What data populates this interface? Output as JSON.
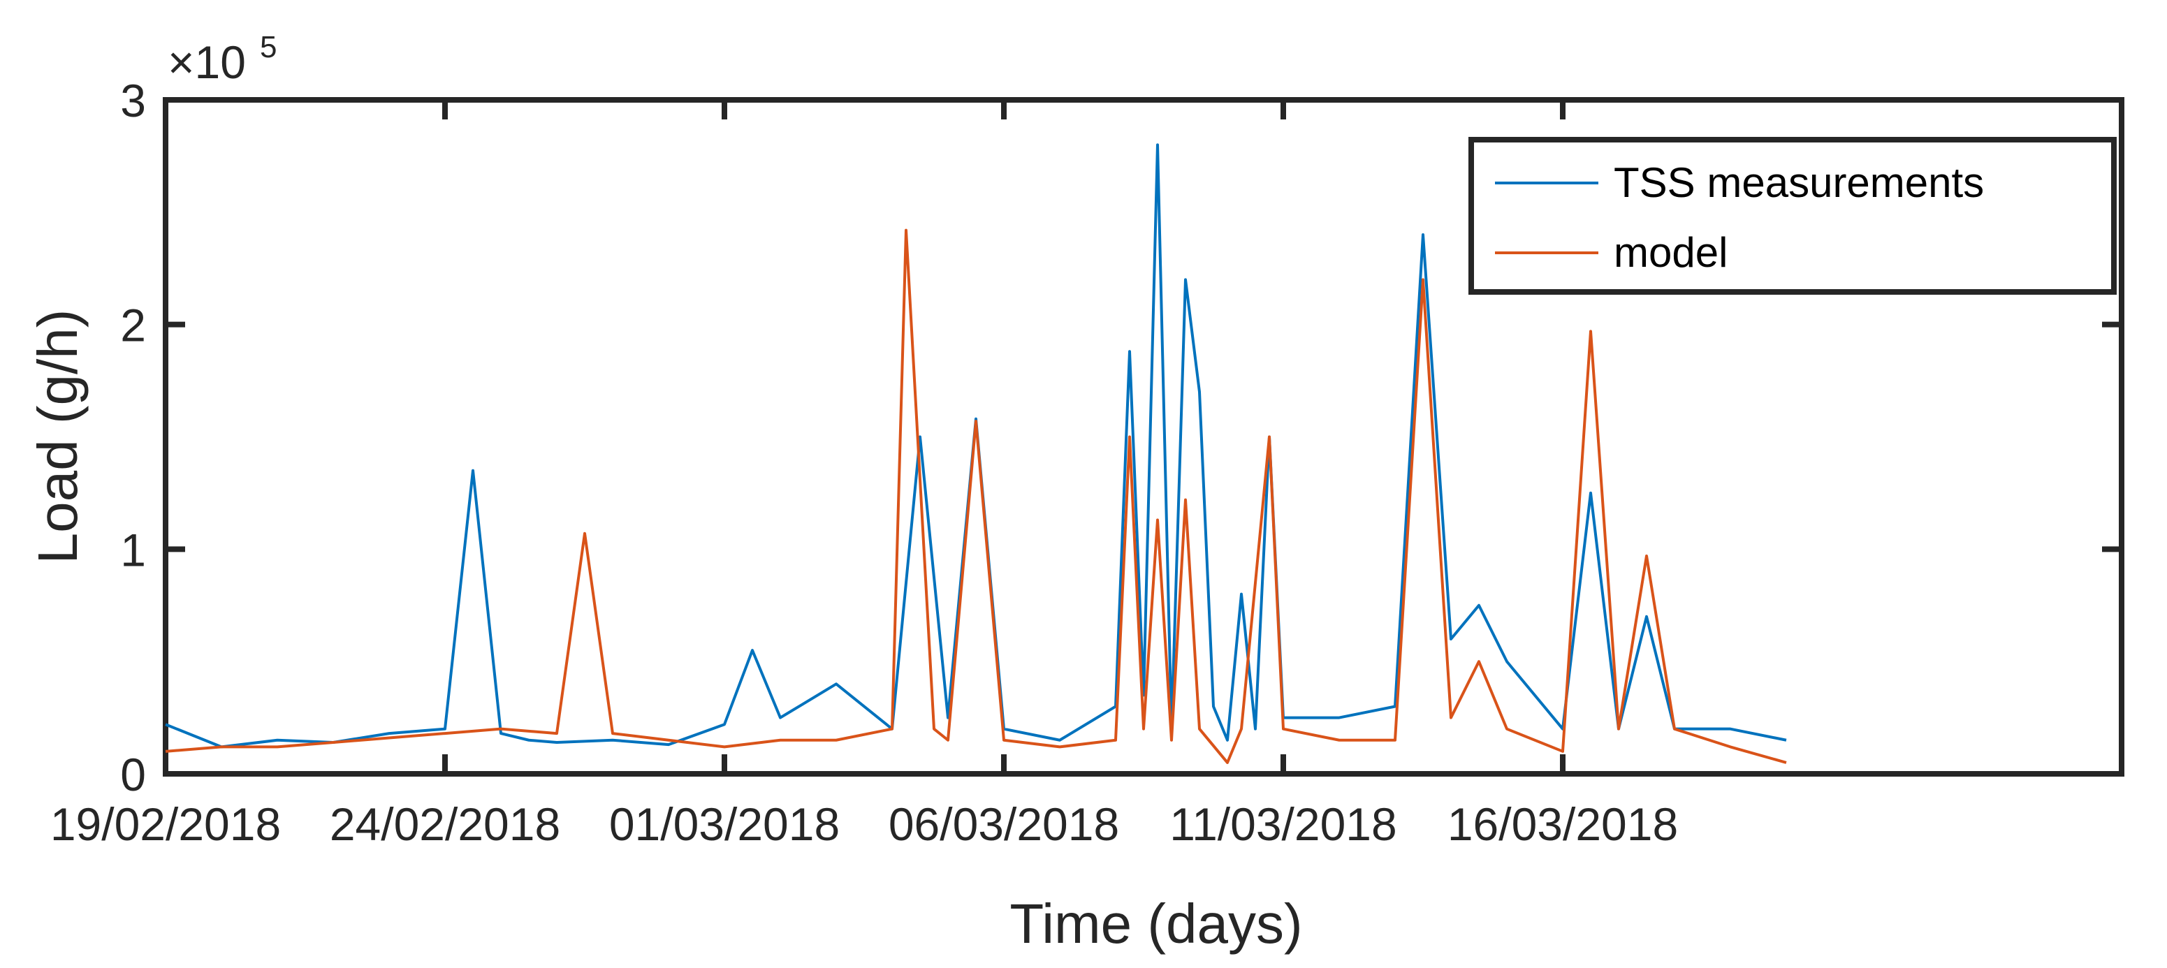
{
  "chart_data": {
    "type": "line",
    "title": "",
    "xlabel": "Time (days)",
    "ylabel": "Load (g/h)",
    "y_exponent_label": "×10",
    "y_exponent_power": "5",
    "y_multiplier": 100000,
    "xlim": [
      "2018-02-19",
      "2018-03-26"
    ],
    "ylim": [
      0,
      3
    ],
    "x_ticks": [
      {
        "date": "2018-02-19",
        "label": "19/02/2018"
      },
      {
        "date": "2018-02-24",
        "label": "24/02/2018"
      },
      {
        "date": "2018-03-01",
        "label": "01/03/2018"
      },
      {
        "date": "2018-03-06",
        "label": "06/03/2018"
      },
      {
        "date": "2018-03-11",
        "label": "11/03/2018"
      },
      {
        "date": "2018-03-16",
        "label": "16/03/2018"
      }
    ],
    "y_ticks": [
      {
        "value": 0,
        "label": "0"
      },
      {
        "value": 1,
        "label": "1"
      },
      {
        "value": 2,
        "label": "2"
      },
      {
        "value": 3,
        "label": "3"
      }
    ],
    "grid": false,
    "legend_position": "top-right",
    "series": [
      {
        "name": "TSS measurements",
        "color": "#0072BD",
        "x": [
          "2018-02-19",
          "2018-02-20",
          "2018-02-21",
          "2018-02-22",
          "2018-02-23",
          "2018-02-24",
          "2018-02-24 12:00",
          "2018-02-25",
          "2018-02-25 12:00",
          "2018-02-26",
          "2018-02-27",
          "2018-02-28",
          "2018-03-01",
          "2018-03-01 12:00",
          "2018-03-02",
          "2018-03-03",
          "2018-03-04",
          "2018-03-04 12:00",
          "2018-03-05",
          "2018-03-05 12:00",
          "2018-03-06",
          "2018-03-07",
          "2018-03-08",
          "2018-03-08 06:00",
          "2018-03-08 12:00",
          "2018-03-08 18:00",
          "2018-03-09",
          "2018-03-09 06:00",
          "2018-03-09 12:00",
          "2018-03-09 18:00",
          "2018-03-10",
          "2018-03-10 06:00",
          "2018-03-10 12:00",
          "2018-03-10 18:00",
          "2018-03-11",
          "2018-03-12",
          "2018-03-13",
          "2018-03-13 12:00",
          "2018-03-14",
          "2018-03-14 12:00",
          "2018-03-15",
          "2018-03-16",
          "2018-03-16 12:00",
          "2018-03-17",
          "2018-03-17 12:00",
          "2018-03-18",
          "2018-03-19",
          "2018-03-20"
        ],
        "values": [
          0.22,
          0.12,
          0.15,
          0.14,
          0.18,
          0.2,
          1.35,
          0.18,
          0.15,
          0.14,
          0.15,
          0.13,
          0.22,
          0.55,
          0.25,
          0.4,
          0.2,
          1.5,
          0.25,
          1.58,
          0.2,
          0.15,
          0.3,
          1.88,
          0.35,
          2.8,
          0.2,
          2.2,
          1.7,
          0.3,
          0.15,
          0.8,
          0.2,
          1.5,
          0.25,
          0.25,
          0.3,
          2.4,
          0.6,
          0.75,
          0.5,
          0.2,
          1.25,
          0.2,
          0.7,
          0.2,
          0.2,
          0.15
        ]
      },
      {
        "name": "model",
        "color": "#D95319",
        "x": [
          "2018-02-19",
          "2018-02-20",
          "2018-02-21",
          "2018-02-22",
          "2018-02-23",
          "2018-02-24",
          "2018-02-25",
          "2018-02-26",
          "2018-02-26 12:00",
          "2018-02-27",
          "2018-02-28",
          "2018-03-01",
          "2018-03-02",
          "2018-03-03",
          "2018-03-04",
          "2018-03-04 06:00",
          "2018-03-04 18:00",
          "2018-03-05",
          "2018-03-05 12:00",
          "2018-03-06",
          "2018-03-07",
          "2018-03-08",
          "2018-03-08 06:00",
          "2018-03-08 12:00",
          "2018-03-08 18:00",
          "2018-03-09",
          "2018-03-09 06:00",
          "2018-03-09 12:00",
          "2018-03-10",
          "2018-03-10 06:00",
          "2018-03-10 18:00",
          "2018-03-11",
          "2018-03-12",
          "2018-03-13",
          "2018-03-13 12:00",
          "2018-03-14",
          "2018-03-14 12:00",
          "2018-03-15",
          "2018-03-16",
          "2018-03-16 12:00",
          "2018-03-17",
          "2018-03-17 12:00",
          "2018-03-18",
          "2018-03-19",
          "2018-03-20"
        ],
        "values": [
          0.1,
          0.12,
          0.12,
          0.14,
          0.16,
          0.18,
          0.2,
          0.18,
          1.07,
          0.18,
          0.15,
          0.12,
          0.15,
          0.15,
          0.2,
          2.42,
          0.2,
          0.15,
          1.57,
          0.15,
          0.12,
          0.15,
          1.5,
          0.2,
          1.13,
          0.15,
          1.22,
          0.2,
          0.05,
          0.2,
          1.5,
          0.2,
          0.15,
          0.15,
          2.2,
          0.25,
          0.5,
          0.2,
          0.1,
          1.97,
          0.2,
          0.97,
          0.2,
          0.12,
          0.05
        ]
      }
    ]
  }
}
